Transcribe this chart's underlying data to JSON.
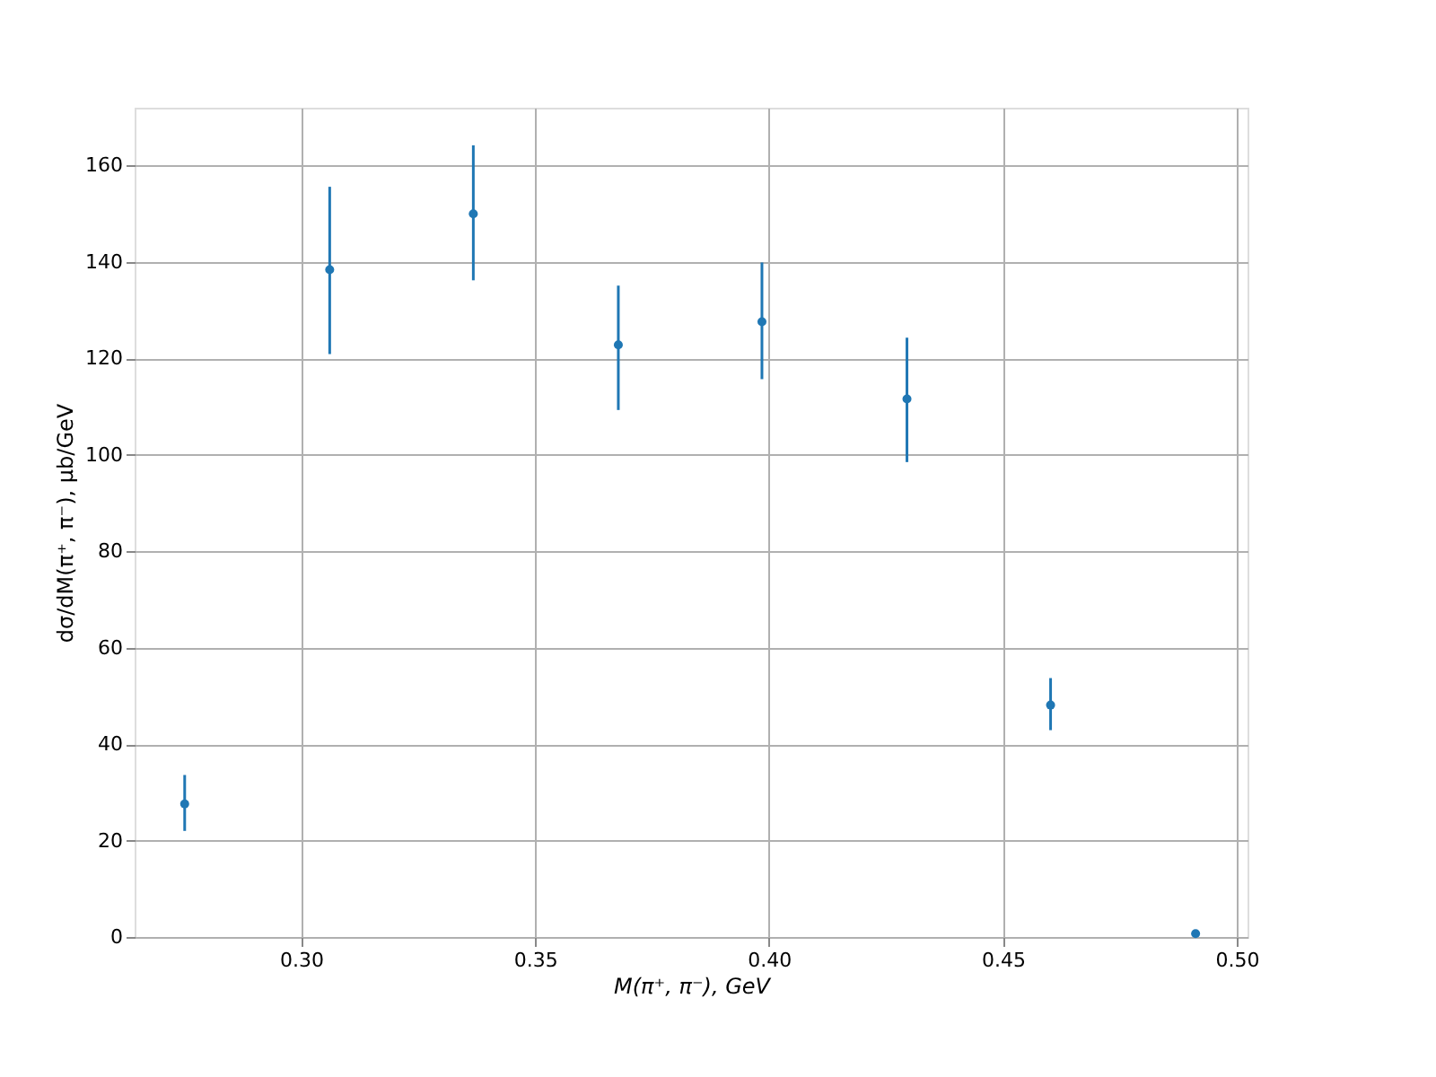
{
  "chart_data": {
    "type": "scatter",
    "xlabel": "M(π⁺, π⁻), GeV",
    "ylabel": "dσ/dM(π⁺, π⁻), μb/GeV",
    "x": [
      0.2751,
      0.3061,
      0.3368,
      0.3678,
      0.3985,
      0.4295,
      0.4602,
      0.4912
    ],
    "series": [
      {
        "color": "#1f77b4",
        "values": [
          27.6,
          138.4,
          150.0,
          122.8,
          127.6,
          111.6,
          48.1,
          0.7
        ],
        "errors": [
          [
            22.0,
            33.6
          ],
          [
            120.9,
            155.6
          ],
          [
            136.2,
            164.2
          ],
          [
            109.3,
            135.1
          ],
          [
            115.7,
            139.9
          ],
          [
            98.5,
            124.3
          ],
          [
            42.9,
            53.7
          ],
          null
        ]
      }
    ],
    "xlim": [
      0.2644,
      0.5023
    ],
    "xticks": [
      {
        "value": 0.3,
        "label": "0.30"
      },
      {
        "value": 0.35,
        "label": "0.35"
      },
      {
        "value": 0.4,
        "label": "0.40"
      },
      {
        "value": 0.45,
        "label": "0.45"
      },
      {
        "value": 0.5,
        "label": "0.50"
      }
    ],
    "ylim": [
      0,
      172
    ],
    "yticks": [
      0,
      20,
      40,
      60,
      80,
      100,
      120,
      140,
      160
    ],
    "grid": true,
    "marker": "circle"
  }
}
